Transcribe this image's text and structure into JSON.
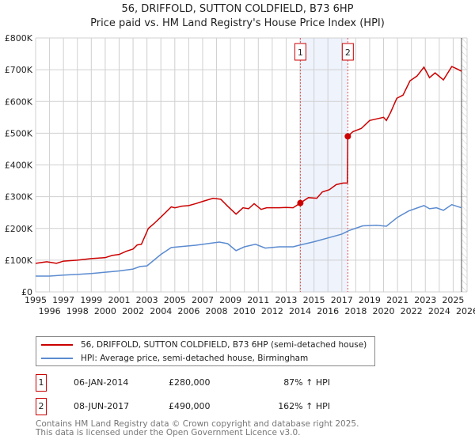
{
  "chart_data": {
    "type": "line",
    "title": "56, DRIFFOLD, SUTTON COLDFIELD, B73 6HP",
    "subtitle": "Price paid vs. HM Land Registry's House Price Index (HPI)",
    "xlim": [
      1995,
      2026
    ],
    "ylim": [
      0,
      800000
    ],
    "x_ticks": [
      "1995",
      "1996",
      "1997",
      "1998",
      "1999",
      "2000",
      "2001",
      "2002",
      "2003",
      "2004",
      "2005",
      "2006",
      "2007",
      "2008",
      "2009",
      "2010",
      "2011",
      "2012",
      "2013",
      "2014",
      "2015",
      "2016",
      "2017",
      "2018",
      "2019",
      "2020",
      "2021",
      "2022",
      "2023",
      "2024",
      "2025",
      "2026"
    ],
    "y_ticks": [
      {
        "v": 0,
        "l": "£0"
      },
      {
        "v": 100000,
        "l": "£100K"
      },
      {
        "v": 200000,
        "l": "£200K"
      },
      {
        "v": 300000,
        "l": "£300K"
      },
      {
        "v": 400000,
        "l": "£400K"
      },
      {
        "v": 500000,
        "l": "£500K"
      },
      {
        "v": 600000,
        "l": "£600K"
      },
      {
        "v": 700000,
        "l": "£700K"
      },
      {
        "v": 800000,
        "l": "£800K"
      }
    ],
    "series": [
      {
        "name": "56, DRIFFOLD, SUTTON COLDFIELD, B73 6HP (semi-detached house)",
        "color": "#cc0000",
        "x": [
          1995,
          1995.8,
          1996.5,
          1997,
          1998,
          1999,
          2000,
          2000.5,
          2001,
          2001.5,
          2002,
          2002.3,
          2002.6,
          2003.1,
          2003.5,
          2004.1,
          2004.75,
          2005,
          2005.5,
          2006,
          2006.5,
          2007,
          2007.75,
          2008.3,
          2008.8,
          2009.4,
          2009.9,
          2010.3,
          2010.7,
          2011.2,
          2011.6,
          2012,
          2012.5,
          2013,
          2013.5,
          2014.02,
          2014.6,
          2015.2,
          2015.6,
          2016.1,
          2016.6,
          2017.1,
          2017.4,
          2017.43,
          2017.8,
          2018.4,
          2019,
          2019.5,
          2020,
          2020.2,
          2020.5,
          2020.95,
          2021.4,
          2021.9,
          2022.4,
          2022.9,
          2023.3,
          2023.7,
          2024.3,
          2024.9,
          2025.3,
          2025.6
        ],
        "y": [
          90000,
          95000,
          90000,
          97000,
          100000,
          105000,
          108000,
          115000,
          118000,
          128000,
          135000,
          148000,
          150000,
          200000,
          215000,
          240000,
          268000,
          265000,
          270000,
          272000,
          278000,
          285000,
          295000,
          292000,
          270000,
          245000,
          265000,
          262000,
          278000,
          260000,
          265000,
          265000,
          265000,
          266000,
          265000,
          280000,
          297000,
          295000,
          315000,
          322000,
          338000,
          343000,
          343000,
          490000,
          505000,
          515000,
          540000,
          545000,
          550000,
          540000,
          565000,
          610000,
          620000,
          665000,
          680000,
          708000,
          675000,
          690000,
          668000,
          710000,
          702000,
          695000
        ]
      },
      {
        "name": "HPI: Average price, semi-detached house, Birmingham",
        "color": "#5b8bd0",
        "x": [
          1995,
          1996,
          1997,
          1998,
          1999,
          2000,
          2001,
          2002,
          2002.5,
          2003,
          2003.5,
          2004,
          2004.75,
          2005.5,
          2006.5,
          2007.5,
          2008.2,
          2008.8,
          2009.4,
          2010,
          2010.8,
          2011.5,
          2012.5,
          2013.5,
          2014.02,
          2015,
          2016,
          2017,
          2017.5,
          2018.5,
          2019.5,
          2020.2,
          2021,
          2021.8,
          2022.9,
          2023.3,
          2023.8,
          2024.3,
          2024.9,
          2025.6
        ],
        "y": [
          50000,
          50000,
          53000,
          55000,
          58000,
          62000,
          66000,
          72000,
          80000,
          82000,
          100000,
          118000,
          140000,
          143000,
          147000,
          153000,
          157000,
          152000,
          130000,
          142000,
          150000,
          138000,
          142000,
          142000,
          148000,
          158000,
          170000,
          182000,
          193000,
          208000,
          210000,
          207000,
          235000,
          255000,
          272000,
          262000,
          265000,
          257000,
          275000,
          265000
        ]
      }
    ],
    "sales": [
      {
        "label": "1",
        "x": 2014.02,
        "y": 280000
      },
      {
        "label": "2",
        "x": 2017.43,
        "y": 490000
      }
    ],
    "shaded_range": [
      2014.02,
      2017.43
    ],
    "hatched_from": 2025.6,
    "legend": "bottom"
  },
  "table": [
    {
      "num": "1",
      "date": "06-JAN-2014",
      "price": "£280,000",
      "hpi": "87% ↑ HPI"
    },
    {
      "num": "2",
      "date": "08-JUN-2017",
      "price": "£490,000",
      "hpi": "162% ↑ HPI"
    }
  ],
  "footer": [
    "Contains HM Land Registry data © Crown copyright and database right 2025.",
    "This data is licensed under the Open Government Licence v3.0."
  ]
}
